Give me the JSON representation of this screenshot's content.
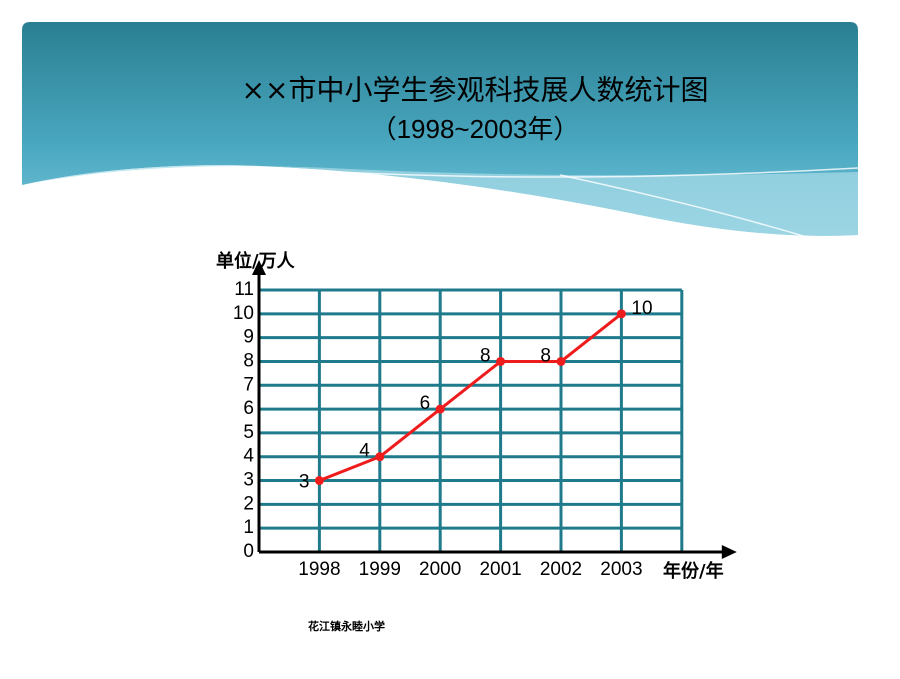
{
  "title": "××市中小学生参观科技展人数统计图",
  "subtitle": "（1998~2003年）",
  "footer": "花江镇永睦小学",
  "chart_data": {
    "type": "line",
    "y_label": "单位/万人",
    "x_label": "年份/年",
    "categories": [
      "1998",
      "1999",
      "2000",
      "2001",
      "2002",
      "2003"
    ],
    "values": [
      3,
      4,
      6,
      8,
      8,
      10
    ],
    "color": "#ee1c1c",
    "grid_color": "#1f7a8c",
    "origin_label_color": "#c00000",
    "ylim": [
      0,
      11
    ],
    "yticks": [
      0,
      1,
      2,
      3,
      4,
      5,
      6,
      7,
      8,
      9,
      10,
      11
    ],
    "grid": true
  }
}
